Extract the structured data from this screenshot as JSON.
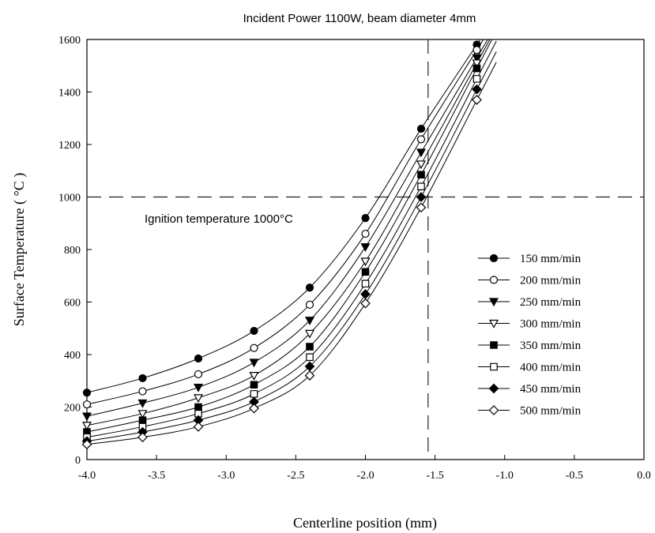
{
  "chart_data": {
    "type": "line",
    "title": "Incident Power 1100W, beam diameter 4mm",
    "xlabel": "Centerline position (mm)",
    "ylabel": "Surface Temperature ( °C )",
    "xlim": [
      -4.0,
      0.0
    ],
    "ylim": [
      0,
      1600
    ],
    "x_ticks": [
      -4.0,
      -3.5,
      -3.0,
      -2.5,
      -2.0,
      -1.5,
      -1.0,
      -0.5,
      0.0
    ],
    "x_tick_labels": [
      "-4.0",
      "-3.5",
      "-3.0",
      "-2.5",
      "-2.0",
      "-1.5",
      "-1.0",
      "-0.5",
      "0.0"
    ],
    "y_ticks": [
      0,
      200,
      400,
      600,
      800,
      1000,
      1200,
      1400,
      1600
    ],
    "y_tick_labels": [
      "0",
      "200",
      "400",
      "600",
      "800",
      "1000",
      "1200",
      "1400",
      "1600"
    ],
    "grid": false,
    "legend_position": "right",
    "x": [
      -4.0,
      -3.6,
      -3.2,
      -2.8,
      -2.4,
      -2.0,
      -1.6,
      -1.2
    ],
    "series": [
      {
        "name": "150 mm/min",
        "marker": "filled-circle",
        "values": [
          255,
          310,
          385,
          490,
          655,
          920,
          1260,
          1580
        ]
      },
      {
        "name": "200 mm/min",
        "marker": "open-circle",
        "values": [
          210,
          260,
          325,
          425,
          590,
          860,
          1220,
          1560
        ]
      },
      {
        "name": "250 mm/min",
        "marker": "filled-triangle-down",
        "values": [
          165,
          215,
          275,
          370,
          530,
          810,
          1170,
          1530
        ]
      },
      {
        "name": "300 mm/min",
        "marker": "open-triangle-down",
        "values": [
          130,
          175,
          235,
          320,
          480,
          755,
          1125,
          1510
        ]
      },
      {
        "name": "350 mm/min",
        "marker": "filled-square",
        "values": [
          105,
          150,
          200,
          285,
          430,
          715,
          1085,
          1490
        ]
      },
      {
        "name": "400 mm/min",
        "marker": "open-square",
        "values": [
          85,
          125,
          175,
          250,
          390,
          670,
          1040,
          1450
        ]
      },
      {
        "name": "450 mm/min",
        "marker": "filled-diamond",
        "values": [
          70,
          105,
          150,
          220,
          355,
          630,
          1000,
          1410
        ]
      },
      {
        "name": "500 mm/min",
        "marker": "open-diamond",
        "values": [
          58,
          85,
          125,
          195,
          320,
          595,
          960,
          1370
        ]
      }
    ],
    "reference_lines": [
      {
        "axis": "y",
        "value": 1000,
        "style": "dashed"
      },
      {
        "axis": "x",
        "value": -1.55,
        "style": "dashed"
      }
    ],
    "annotations": [
      {
        "text": "Ignition temperature 1000°C",
        "x": -3.75,
        "y": 930
      }
    ]
  }
}
